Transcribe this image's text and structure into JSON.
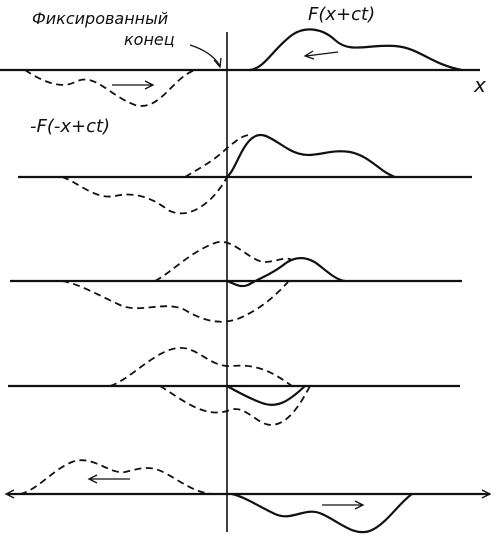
{
  "labels": {
    "fixed_end": "Фиксированный",
    "fixed_end_2": "конец",
    "forward_wave": "F(x+ct)",
    "reflected_wave": "-F(-x+ct)",
    "x_axis": "x"
  }
}
